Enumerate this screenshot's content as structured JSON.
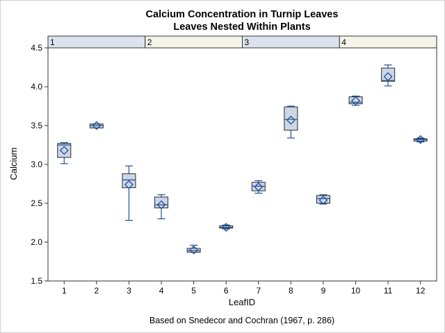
{
  "chart_data": {
    "type": "box",
    "title": "Calcium Concentration in Turnip Leaves",
    "subtitle": "Leaves Nested Within Plants",
    "xlabel": "LeafID",
    "ylabel": "Calcium",
    "footnote": "Based on Snedecor and Cochran (1967, p. 286)",
    "ylim": [
      1.5,
      4.5
    ],
    "yticks": [
      "1.5",
      "2.0",
      "2.5",
      "3.0",
      "3.5",
      "4.0",
      "4.5"
    ],
    "ytick_values": [
      1.5,
      2.0,
      2.5,
      3.0,
      3.5,
      4.0,
      4.5
    ],
    "categories": [
      "1",
      "2",
      "3",
      "4",
      "5",
      "6",
      "7",
      "8",
      "9",
      "10",
      "11",
      "12"
    ],
    "groups": [
      {
        "label": "1",
        "leaves": 3,
        "color": "#dde3ee"
      },
      {
        "label": "2",
        "leaves": 3,
        "color": "#f4f4ea"
      },
      {
        "label": "3",
        "leaves": 3,
        "color": "#dde3ee"
      },
      {
        "label": "4",
        "leaves": 3,
        "color": "#f4f4ea"
      }
    ],
    "boxes": [
      {
        "min": 3.01,
        "q1": 3.09,
        "median": 3.25,
        "q3": 3.27,
        "max": 3.28,
        "mean": 3.18
      },
      {
        "min": 3.47,
        "q1": 3.47,
        "median": 3.5,
        "q3": 3.52,
        "max": 3.52,
        "mean": 3.5
      },
      {
        "min": 2.28,
        "q1": 2.7,
        "median": 2.8,
        "q3": 2.88,
        "max": 2.98,
        "mean": 2.74
      },
      {
        "min": 2.3,
        "q1": 2.44,
        "median": 2.48,
        "q3": 2.58,
        "max": 2.61,
        "mean": 2.48
      },
      {
        "min": 1.87,
        "q1": 1.87,
        "median": 1.89,
        "q3": 1.92,
        "max": 1.96,
        "mean": 1.9
      },
      {
        "min": 2.17,
        "q1": 2.18,
        "median": 2.19,
        "q3": 2.21,
        "max": 2.22,
        "mean": 2.19
      },
      {
        "min": 2.63,
        "q1": 2.66,
        "median": 2.72,
        "q3": 2.77,
        "max": 2.79,
        "mean": 2.71
      },
      {
        "min": 3.34,
        "q1": 3.44,
        "median": 3.58,
        "q3": 3.74,
        "max": 3.75,
        "mean": 3.57
      },
      {
        "min": 2.49,
        "q1": 2.5,
        "median": 2.56,
        "q3": 2.6,
        "max": 2.61,
        "mean": 2.54
      },
      {
        "min": 3.76,
        "q1": 3.78,
        "median": 3.8,
        "q3": 3.87,
        "max": 3.88,
        "mean": 3.82
      },
      {
        "min": 4.01,
        "q1": 4.07,
        "median": 4.08,
        "q3": 4.24,
        "max": 4.28,
        "mean": 4.13
      },
      {
        "min": 3.29,
        "q1": 3.3,
        "median": 3.32,
        "q3": 3.33,
        "max": 3.34,
        "mean": 3.32
      }
    ],
    "colors": {
      "box_fill": "#ccd6e6",
      "box_edge": "#2a2a2a",
      "whisker": "#1f4e9c",
      "median": "#1f4e9c",
      "mean_marker": "#1f4e9c"
    },
    "grid": false
  }
}
